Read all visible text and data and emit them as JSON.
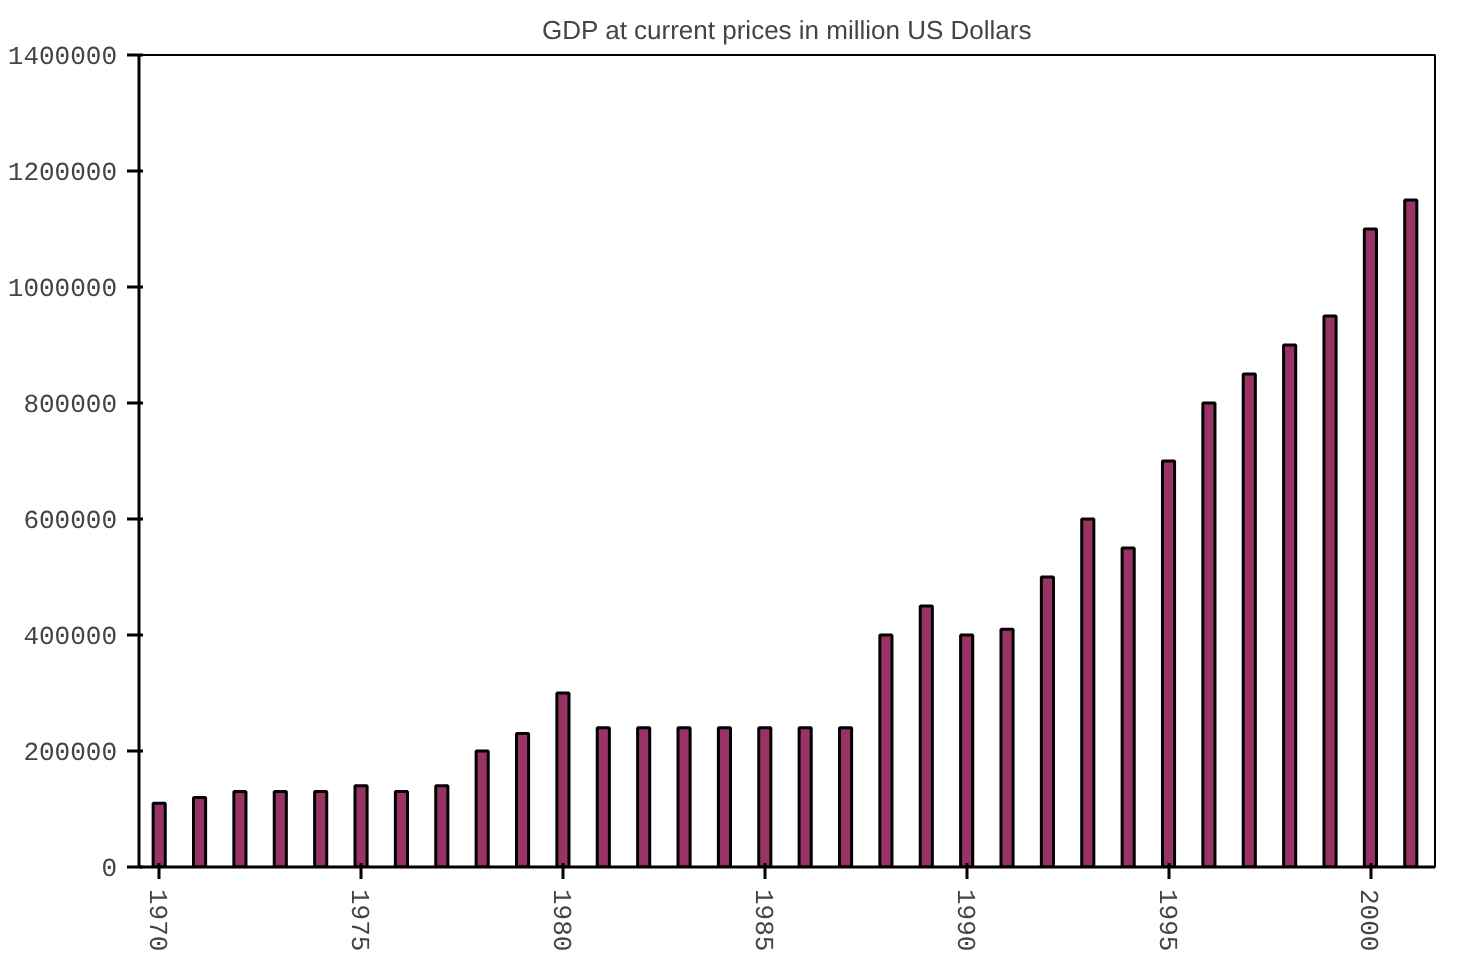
{
  "chart_data": {
    "type": "bar",
    "title": "GDP at current prices in million US Dollars",
    "x": [
      1970,
      1971,
      1972,
      1973,
      1974,
      1975,
      1976,
      1977,
      1978,
      1979,
      1980,
      1981,
      1982,
      1983,
      1984,
      1985,
      1986,
      1987,
      1988,
      1989,
      1990,
      1991,
      1992,
      1993,
      1994,
      1995,
      1996,
      1997,
      1998,
      1999,
      2000,
      2001
    ],
    "values": [
      110000,
      120000,
      130000,
      130000,
      130000,
      140000,
      130000,
      140000,
      200000,
      230000,
      300000,
      240000,
      240000,
      240000,
      240000,
      240000,
      240000,
      240000,
      400000,
      450000,
      400000,
      410000,
      500000,
      600000,
      550000,
      700000,
      800000,
      850000,
      900000,
      950000,
      1100000,
      1150000
    ],
    "color": "#993366",
    "xlim": [
      1969.5,
      2001.6
    ],
    "xticks": [
      1970,
      1975,
      1980,
      1985,
      1990,
      1995,
      2000
    ],
    "ylim": [
      0,
      1400000
    ],
    "yticks": [
      0,
      200000,
      400000,
      600000,
      800000,
      1000000,
      1200000,
      1400000
    ],
    "grid": false
  }
}
